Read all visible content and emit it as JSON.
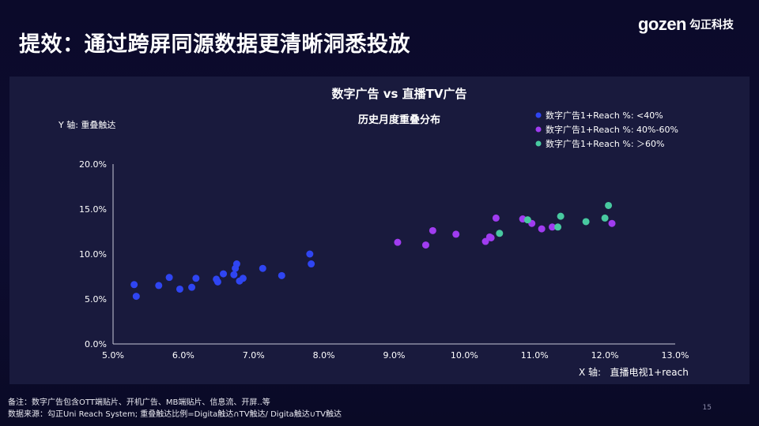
{
  "slide": {
    "title": "提效：通过跨屏同源数据更清晰洞悉投放",
    "logo_word": "gozen",
    "logo_cn": "勾正科技",
    "page_number": "15"
  },
  "footer": {
    "note": "备注：数字广告包含OTT端贴片、开机广告、MB端贴片、信息流、开屏..等",
    "source": "数据来源：勾正Uni Reach System; 重叠触达比例=Digita触达∩TV触达/   Digita触达∪TV触达"
  },
  "colors": {
    "low": "#2f45f2",
    "mid": "#a03cf0",
    "high": "#48c9a0"
  },
  "chart_data": {
    "type": "scatter",
    "title": "数字广告 vs 直播TV广告",
    "subtitle": "历史月度重叠分布",
    "xlabel": "X 轴:   直播电视1+reach",
    "ylabel": "Y 轴: 重叠触达",
    "xlim": [
      5.0,
      13.0
    ],
    "ylim": [
      0.0,
      20.0
    ],
    "x_ticks": [
      "5.0%",
      "6.0%",
      "7.0%",
      "8.0%",
      "9.0%",
      "10.0%",
      "11.0%",
      "12.0%",
      "13.0%"
    ],
    "y_ticks": [
      "0.0%",
      "5.0%",
      "10.0%",
      "15.0%",
      "20.0%"
    ],
    "grid": false,
    "legend_position": "top-right",
    "series": [
      {
        "name": "数字广告1+Reach %: <40%",
        "color_key": "low",
        "points": [
          [
            5.3,
            6.6
          ],
          [
            5.33,
            5.3
          ],
          [
            5.65,
            6.5
          ],
          [
            5.8,
            7.4
          ],
          [
            5.95,
            6.1
          ],
          [
            6.12,
            6.3
          ],
          [
            6.18,
            7.3
          ],
          [
            6.47,
            7.2
          ],
          [
            6.49,
            6.9
          ],
          [
            6.57,
            7.8
          ],
          [
            6.72,
            7.7
          ],
          [
            6.74,
            8.4
          ],
          [
            6.76,
            8.9
          ],
          [
            6.8,
            7.0
          ],
          [
            6.85,
            7.3
          ],
          [
            7.13,
            8.4
          ],
          [
            7.4,
            7.6
          ],
          [
            7.8,
            10.0
          ],
          [
            7.82,
            8.9
          ]
        ]
      },
      {
        "name": "数字广告1+Reach %: 40%-60%",
        "color_key": "mid",
        "points": [
          [
            9.05,
            11.3
          ],
          [
            9.45,
            11.0
          ],
          [
            9.55,
            12.6
          ],
          [
            9.88,
            12.2
          ],
          [
            10.3,
            11.4
          ],
          [
            10.36,
            11.9
          ],
          [
            10.38,
            11.8
          ],
          [
            10.45,
            14.0
          ],
          [
            10.83,
            13.9
          ],
          [
            10.96,
            13.4
          ],
          [
            11.1,
            12.8
          ],
          [
            11.25,
            13.0
          ],
          [
            12.1,
            13.4
          ]
        ]
      },
      {
        "name": "数字广告1+Reach %: ＞60%",
        "color_key": "high",
        "points": [
          [
            10.5,
            12.3
          ],
          [
            10.9,
            13.8
          ],
          [
            11.33,
            13.0
          ],
          [
            11.37,
            14.2
          ],
          [
            11.73,
            13.6
          ],
          [
            12.0,
            14.0
          ],
          [
            12.05,
            15.4
          ]
        ]
      }
    ]
  }
}
